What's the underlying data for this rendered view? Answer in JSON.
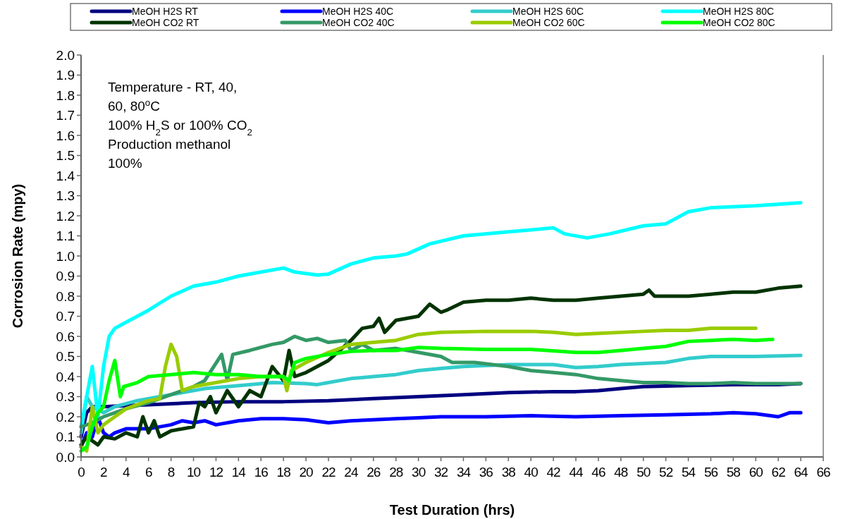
{
  "chart_data": {
    "type": "line",
    "xlabel": "Test Duration (hrs)",
    "ylabel": "Corrosion Rate (mpy)",
    "annotations": [
      "Temperature - RT, 40,",
      "60, 80$^{o}$C",
      "100% H$_{2}$S or 100% CO$_{2}$",
      "Production methanol",
      "100%"
    ],
    "xlim": [
      0,
      66
    ],
    "xticks": [
      0,
      2,
      4,
      6,
      8,
      10,
      12,
      14,
      16,
      18,
      20,
      22,
      24,
      26,
      28,
      30,
      32,
      34,
      36,
      38,
      40,
      42,
      44,
      46,
      48,
      50,
      52,
      54,
      56,
      58,
      60,
      62,
      64,
      66
    ],
    "ylim": [
      0,
      2
    ],
    "yticks": [
      {
        "value": 0,
        "label": "0.0"
      },
      {
        "value": 0.1,
        "label": "0.1"
      },
      {
        "value": 0.2,
        "label": "0.2"
      },
      {
        "value": 0.3,
        "label": "0.3"
      },
      {
        "value": 0.4,
        "label": "0.4"
      },
      {
        "value": 0.5,
        "label": "0.5"
      },
      {
        "value": 0.6,
        "label": "0.6"
      },
      {
        "value": 0.7,
        "label": "0.7"
      },
      {
        "value": 0.8,
        "label": "0.8"
      },
      {
        "value": 0.9,
        "label": "0.9"
      },
      {
        "value": 1,
        "label": "1.0"
      },
      {
        "value": 1.1,
        "label": "1.1"
      },
      {
        "value": 1.2,
        "label": "1.2"
      },
      {
        "value": 1.3,
        "label": "1.3"
      },
      {
        "value": 1.4,
        "label": "1.4"
      },
      {
        "value": 1.5,
        "label": "1.5"
      },
      {
        "value": 1.6,
        "label": "1.6"
      },
      {
        "value": 1.7,
        "label": "1.7"
      },
      {
        "value": 1.8,
        "label": "1.8"
      },
      {
        "value": 1.9,
        "label": "1.9"
      },
      {
        "value": 2,
        "label": "2.0"
      }
    ],
    "grid": false,
    "legend": "top",
    "marker": "none",
    "line_style": "solid",
    "series": [
      {
        "name": "MeOH H2S RT",
        "color": "#000080",
        "x": [
          0,
          0.5,
          1,
          2,
          4,
          6,
          10,
          14,
          18,
          22,
          26,
          30,
          34,
          38,
          42,
          44,
          46,
          48,
          50,
          54,
          58,
          62,
          64
        ],
        "values": [
          0.1,
          0.22,
          0.25,
          0.25,
          0.255,
          0.26,
          0.27,
          0.275,
          0.275,
          0.28,
          0.29,
          0.3,
          0.31,
          0.32,
          0.325,
          0.325,
          0.33,
          0.34,
          0.35,
          0.355,
          0.36,
          0.36,
          0.365
        ]
      },
      {
        "name": "MeOH H2S 40C",
        "color": "#0000ff",
        "x": [
          0,
          0.5,
          1,
          1.5,
          2,
          2.5,
          3,
          4,
          6,
          8,
          9,
          10,
          11,
          12,
          14,
          16,
          18,
          20,
          22,
          24,
          26,
          28,
          30,
          32,
          36,
          40,
          44,
          48,
          52,
          56,
          58,
          60,
          62,
          63,
          64
        ],
        "values": [
          0.05,
          0.12,
          0.1,
          0.2,
          0.12,
          0.1,
          0.12,
          0.14,
          0.14,
          0.16,
          0.18,
          0.17,
          0.18,
          0.16,
          0.18,
          0.19,
          0.19,
          0.185,
          0.17,
          0.18,
          0.185,
          0.19,
          0.195,
          0.2,
          0.2,
          0.205,
          0.2,
          0.205,
          0.21,
          0.215,
          0.22,
          0.215,
          0.2,
          0.22,
          0.22
        ]
      },
      {
        "name": "MeOH H2S 60C",
        "color": "#33cccc",
        "x": [
          0,
          0.5,
          1,
          2,
          3,
          5,
          7,
          9,
          11,
          13,
          15,
          17,
          20,
          21,
          22,
          24,
          26,
          28,
          30,
          32,
          34,
          38,
          40,
          42,
          44,
          46,
          48,
          50,
          52,
          54,
          56,
          60,
          64
        ],
        "values": [
          0.12,
          0.3,
          0.25,
          0.22,
          0.25,
          0.28,
          0.3,
          0.32,
          0.34,
          0.35,
          0.36,
          0.37,
          0.365,
          0.36,
          0.37,
          0.39,
          0.4,
          0.41,
          0.43,
          0.44,
          0.45,
          0.46,
          0.46,
          0.46,
          0.445,
          0.45,
          0.46,
          0.465,
          0.47,
          0.49,
          0.5,
          0.5,
          0.505
        ]
      },
      {
        "name": "MeOH H2S 80C",
        "color": "#00ffff",
        "x": [
          0,
          1,
          1.5,
          2,
          2.5,
          3,
          4,
          6,
          8,
          10,
          12,
          14,
          16,
          18,
          19,
          21,
          22,
          24,
          26,
          28,
          29,
          31,
          34,
          38,
          40,
          42,
          43,
          45,
          47,
          50,
          52,
          54,
          56,
          60,
          64
        ],
        "values": [
          0.15,
          0.45,
          0.2,
          0.45,
          0.6,
          0.64,
          0.67,
          0.73,
          0.8,
          0.85,
          0.87,
          0.9,
          0.92,
          0.94,
          0.92,
          0.905,
          0.91,
          0.96,
          0.99,
          1,
          1.01,
          1.06,
          1.1,
          1.12,
          1.13,
          1.14,
          1.11,
          1.09,
          1.11,
          1.15,
          1.16,
          1.22,
          1.24,
          1.25,
          1.265
        ]
      },
      {
        "name": "MeOH CO2 RT",
        "color": "#003300",
        "x": [
          0,
          0.5,
          1.5,
          2,
          3,
          4,
          5,
          5.5,
          6,
          6.5,
          7,
          8,
          10,
          10.5,
          11,
          11.5,
          12,
          13,
          14,
          15,
          16,
          17,
          18,
          18.5,
          19,
          20,
          22,
          24,
          25,
          26,
          26.5,
          27,
          28,
          30,
          31,
          32,
          32.5,
          34,
          36,
          38,
          40,
          42,
          44,
          46,
          48,
          50,
          50.5,
          51,
          54,
          56,
          58,
          60,
          62,
          64
        ],
        "values": [
          0.06,
          0.1,
          0.06,
          0.1,
          0.09,
          0.12,
          0.1,
          0.2,
          0.12,
          0.18,
          0.1,
          0.13,
          0.15,
          0.27,
          0.25,
          0.3,
          0.22,
          0.33,
          0.25,
          0.33,
          0.3,
          0.45,
          0.38,
          0.53,
          0.4,
          0.42,
          0.48,
          0.58,
          0.64,
          0.65,
          0.69,
          0.62,
          0.68,
          0.7,
          0.76,
          0.72,
          0.73,
          0.77,
          0.78,
          0.78,
          0.79,
          0.78,
          0.78,
          0.79,
          0.8,
          0.81,
          0.83,
          0.8,
          0.8,
          0.81,
          0.82,
          0.82,
          0.84,
          0.85
        ]
      },
      {
        "name": "MeOH CO2 40C",
        "color": "#339966",
        "x": [
          0,
          1,
          2,
          4,
          6,
          8,
          10,
          11,
          12.5,
          13,
          13.5,
          15,
          17,
          18,
          19,
          20,
          21,
          22,
          23.5,
          24,
          25,
          26,
          28,
          30,
          32,
          33,
          35,
          38,
          40,
          42,
          44,
          46,
          48,
          50,
          52,
          54,
          56,
          58,
          60,
          62,
          64
        ],
        "values": [
          0.15,
          0.17,
          0.2,
          0.24,
          0.27,
          0.31,
          0.35,
          0.38,
          0.51,
          0.38,
          0.51,
          0.53,
          0.56,
          0.57,
          0.6,
          0.58,
          0.59,
          0.57,
          0.58,
          0.53,
          0.56,
          0.53,
          0.54,
          0.52,
          0.5,
          0.47,
          0.47,
          0.45,
          0.43,
          0.42,
          0.41,
          0.39,
          0.38,
          0.37,
          0.37,
          0.365,
          0.365,
          0.37,
          0.365,
          0.365,
          0.365
        ]
      },
      {
        "name": "MeOH CO2 60C",
        "color": "#99cc00",
        "x": [
          0,
          0.5,
          1,
          1.5,
          2,
          3,
          4,
          6,
          7,
          7.5,
          8,
          8.5,
          9,
          10,
          12,
          14,
          16,
          18,
          18.3,
          18.7,
          20,
          22,
          24,
          26,
          28,
          30,
          32,
          36,
          40,
          42,
          44,
          46,
          50,
          52,
          54,
          56,
          60
        ],
        "values": [
          0.05,
          0.03,
          0.25,
          0.12,
          0.16,
          0.2,
          0.24,
          0.28,
          0.29,
          0.45,
          0.56,
          0.5,
          0.33,
          0.35,
          0.37,
          0.39,
          0.4,
          0.4,
          0.33,
          0.43,
          0.47,
          0.52,
          0.56,
          0.57,
          0.58,
          0.61,
          0.62,
          0.625,
          0.625,
          0.62,
          0.61,
          0.615,
          0.625,
          0.63,
          0.63,
          0.64,
          0.64
        ]
      },
      {
        "name": "MeOH CO2 80C",
        "color": "#00ff00",
        "x": [
          0,
          0.5,
          1,
          1.5,
          2,
          2.5,
          3,
          3.5,
          3.8,
          5,
          6,
          8,
          10,
          12,
          14,
          16,
          18,
          18.5,
          19,
          20,
          22,
          24,
          26,
          28,
          30,
          32,
          36,
          40,
          44,
          46,
          48,
          50,
          52,
          54,
          56,
          58,
          60,
          61.5
        ],
        "values": [
          0.03,
          0.05,
          0.15,
          0.22,
          0.25,
          0.38,
          0.48,
          0.3,
          0.35,
          0.37,
          0.4,
          0.41,
          0.42,
          0.41,
          0.41,
          0.4,
          0.4,
          0.38,
          0.47,
          0.49,
          0.51,
          0.525,
          0.53,
          0.53,
          0.545,
          0.54,
          0.535,
          0.535,
          0.52,
          0.52,
          0.53,
          0.54,
          0.55,
          0.575,
          0.58,
          0.585,
          0.58,
          0.585
        ]
      }
    ]
  }
}
